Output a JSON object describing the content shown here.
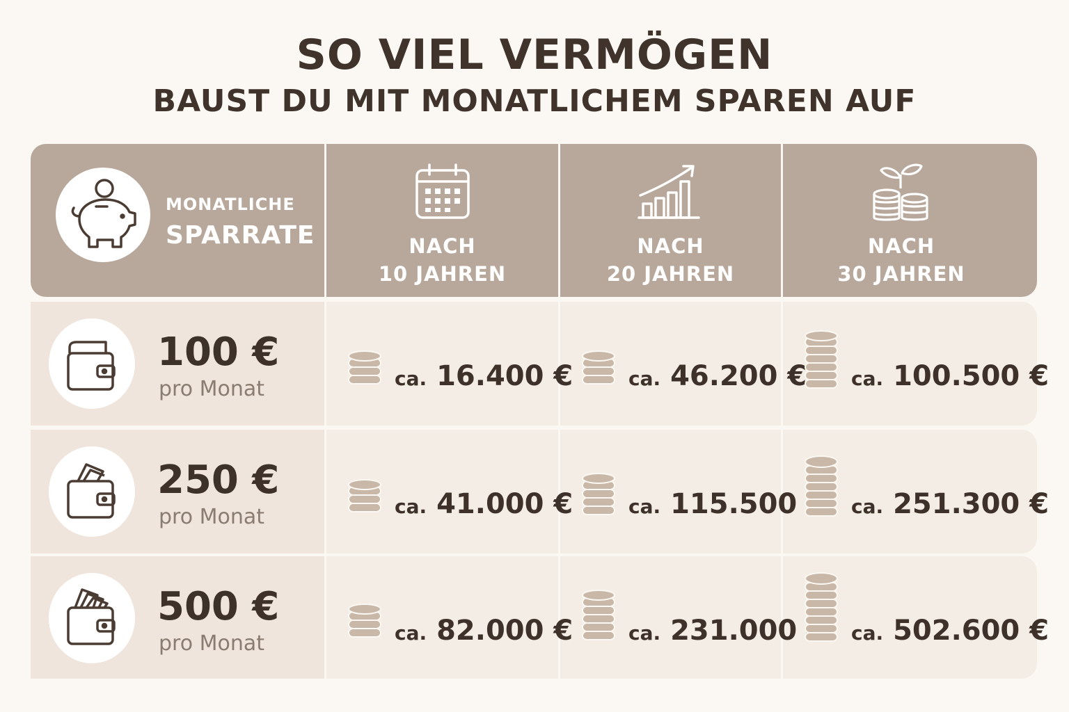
{
  "title": "SO VIEL VERMÖGEN",
  "subtitle": "BAUST DU MIT MONATLICHEM SPAREN AUF",
  "header": {
    "rate_small": "MONATLICHE",
    "rate_big": "SPARRATE",
    "columns": [
      {
        "line1": "NACH",
        "line2": "10 JAHREN",
        "icon": "calendar-icon"
      },
      {
        "line1": "NACH",
        "line2": "20 JAHREN",
        "icon": "growth-chart-icon"
      },
      {
        "line1": "NACH",
        "line2": "30 JAHREN",
        "icon": "coins-plant-icon"
      }
    ],
    "rate_icon": "piggy-bank-icon"
  },
  "rows": [
    {
      "amount": "100 €",
      "per": "pro Monat",
      "icon": "wallet-icon",
      "values": [
        {
          "prefix": "ca.",
          "value": "16.400 €"
        },
        {
          "prefix": "ca.",
          "value": "46.200 €"
        },
        {
          "prefix": "ca.",
          "value": "100.500 €"
        }
      ]
    },
    {
      "amount": "250 €",
      "per": "pro Monat",
      "icon": "wallet-cash-icon",
      "values": [
        {
          "prefix": "ca.",
          "value": "41.000 €"
        },
        {
          "prefix": "ca.",
          "value": "115.500 €"
        },
        {
          "prefix": "ca.",
          "value": "251.300 €"
        }
      ]
    },
    {
      "amount": "500 €",
      "per": "pro Monat",
      "icon": "wallet-full-cash-icon",
      "values": [
        {
          "prefix": "ca.",
          "value": "82.000 €"
        },
        {
          "prefix": "ca.",
          "value": "231.000 €"
        },
        {
          "prefix": "ca.",
          "value": "502.600 €"
        }
      ]
    }
  ],
  "colors": {
    "header_bg": "#b7a89b",
    "row_bg": "#f4ede6",
    "left_col_bg": "#efe5dc",
    "coin": "#c9b8a8",
    "text_dark": "#3d3129"
  }
}
